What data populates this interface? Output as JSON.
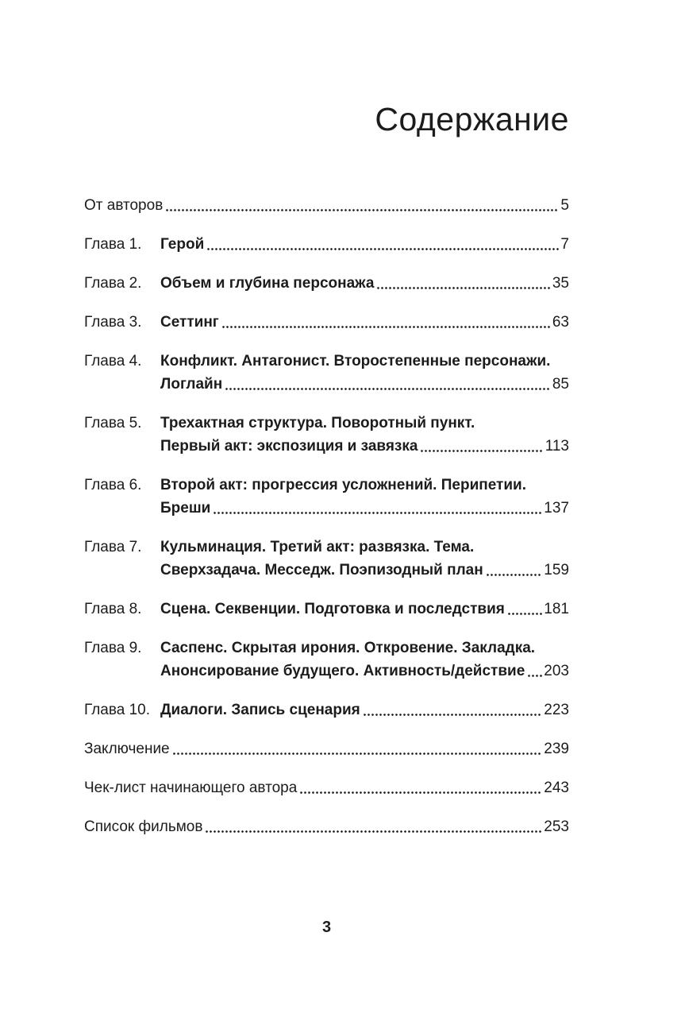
{
  "page": {
    "title": "Содержание",
    "folio": "3"
  },
  "toc": {
    "entries": [
      {
        "label": "",
        "lines": [
          "От авторов"
        ],
        "page": "5"
      },
      {
        "label": "Глава 1.",
        "lines": [
          "Герой"
        ],
        "page": "7"
      },
      {
        "label": "Глава 2.",
        "lines": [
          "Объем и глубина персонажа"
        ],
        "page": "35"
      },
      {
        "label": "Глава 3.",
        "lines": [
          "Сеттинг"
        ],
        "page": "63"
      },
      {
        "label": "Глава 4.",
        "lines": [
          "Конфликт. Антагонист. Второстепенные персонажи.",
          "Логлайн"
        ],
        "page": "85"
      },
      {
        "label": "Глава 5.",
        "lines": [
          "Трехактная структура. Поворотный пункт.",
          "Первый акт: экспозиция и завязка"
        ],
        "page": "113"
      },
      {
        "label": "Глава 6.",
        "lines": [
          "Второй акт: прогрессия усложнений. Перипетии.",
          "Бреши"
        ],
        "page": "137"
      },
      {
        "label": "Глава 7.",
        "lines": [
          "Кульминация. Третий акт: развязка. Тема.",
          "Сверхзадача. Месседж. Поэпизодный план"
        ],
        "page": "159"
      },
      {
        "label": "Глава 8.",
        "lines": [
          "Сцена. Секвенции. Подготовка и последствия"
        ],
        "page": "181"
      },
      {
        "label": "Глава 9.",
        "lines": [
          "Саспенс. Скрытая ирония. Откровение. Закладка.",
          "Анонсирование будущего. Активность/действие"
        ],
        "page": "203"
      },
      {
        "label": "Глава 10.",
        "lines": [
          "Диалоги. Запись сценария"
        ],
        "page": "223"
      },
      {
        "label": "",
        "lines": [
          "Заключение"
        ],
        "page": "239"
      },
      {
        "label": "",
        "lines": [
          "Чек-лист начинающего автора"
        ],
        "page": "243"
      },
      {
        "label": "",
        "lines": [
          "Список фильмов"
        ],
        "page": "253"
      }
    ]
  }
}
